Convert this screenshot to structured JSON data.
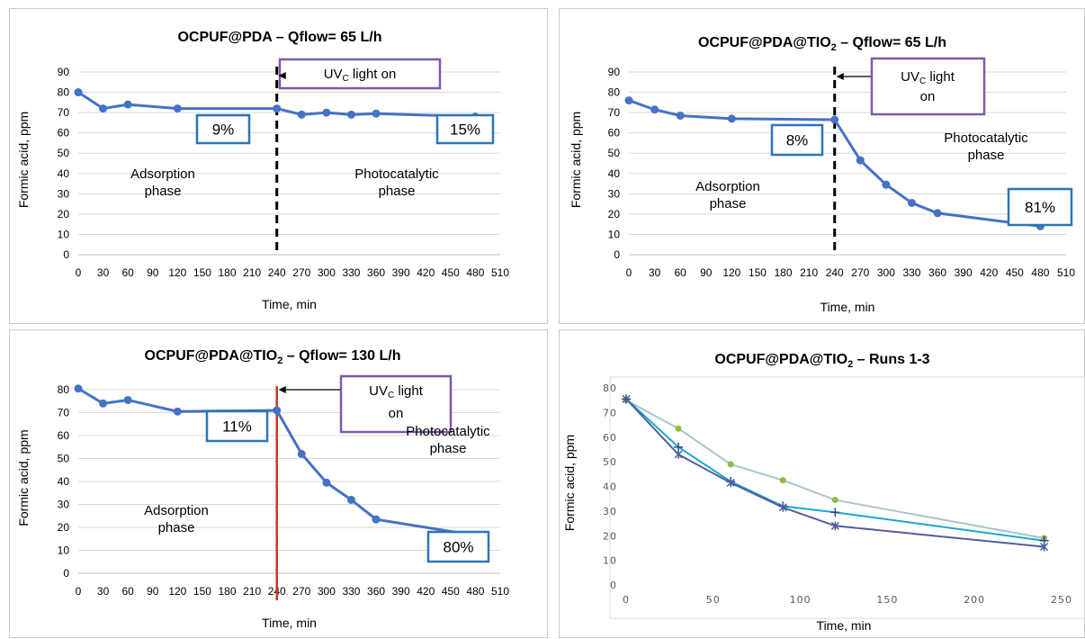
{
  "chart_data": [
    {
      "type": "line",
      "title": "OCPUF@PDA – Qflow= 65 L/h",
      "xlabel": "Time, min",
      "ylabel": "Formic  acid, ppm",
      "xlim": [
        0,
        510
      ],
      "ylim": [
        0,
        90
      ],
      "xticks": [
        "0",
        "30",
        "60",
        "90",
        "120",
        "150",
        "180",
        "210",
        "240",
        "270",
        "300",
        "330",
        "360",
        "390",
        "420",
        "450",
        "480",
        "510"
      ],
      "yticks": [
        "0",
        "10",
        "20",
        "30",
        "40",
        "50",
        "60",
        "70",
        "80",
        "90"
      ],
      "colors": {
        "series": "#4472c4",
        "marker_line": "#000000"
      },
      "grid": true,
      "uv_line": {
        "x": 240,
        "style": "dashed-black"
      },
      "series": [
        {
          "x": [
            0,
            30,
            60,
            120,
            240,
            270,
            300,
            330,
            360,
            480
          ],
          "y": [
            80,
            72,
            74,
            72,
            72,
            69,
            70,
            69,
            69.5,
            68
          ]
        }
      ],
      "annotations": {
        "uv": {
          "main": "UV",
          "sub": "C",
          "rest": " light on"
        },
        "pct_left": "9%",
        "pct_right": "15%",
        "phase_left": [
          "Adsorption",
          "phase"
        ],
        "phase_right": [
          "Photocatalytic",
          "phase"
        ]
      }
    },
    {
      "type": "line",
      "title_parts": [
        "OCPUF@PDA@TIO",
        "2",
        " – Qflow= 65 L/h"
      ],
      "xlabel": "Time, min",
      "ylabel": "Formic  acid, ppm",
      "xlim": [
        0,
        510
      ],
      "ylim": [
        0,
        90
      ],
      "xticks": [
        "0",
        "30",
        "60",
        "90",
        "120",
        "150",
        "180",
        "210",
        "240",
        "270",
        "300",
        "330",
        "360",
        "390",
        "420",
        "450",
        "480",
        "510"
      ],
      "yticks": [
        "0",
        "10",
        "20",
        "30",
        "40",
        "50",
        "60",
        "70",
        "80",
        "90"
      ],
      "colors": {
        "series": "#4472c4"
      },
      "grid": true,
      "uv_line": {
        "x": 240,
        "style": "dashed-black"
      },
      "series": [
        {
          "x": [
            0,
            30,
            60,
            120,
            240,
            270,
            300,
            330,
            360,
            480
          ],
          "y": [
            76,
            71.5,
            68.5,
            67,
            66.5,
            46.5,
            34.5,
            25.5,
            20.5,
            14
          ]
        }
      ],
      "annotations": {
        "uv": {
          "main": "UV",
          "sub": "C",
          "rest": " light",
          "line2": "on"
        },
        "pct_left": "8%",
        "pct_right": "81%",
        "phase_left": [
          "Adsorption",
          "phase"
        ],
        "phase_right": [
          "Photocatalytic",
          "phase"
        ]
      }
    },
    {
      "type": "line",
      "title_parts": [
        "OCPUF@PDA@TIO",
        "2",
        " – Qflow= 130 L/h"
      ],
      "xlabel": "Time, min",
      "ylabel": "Formic  acid, ppm",
      "xlim": [
        0,
        510
      ],
      "ylim": [
        0,
        80
      ],
      "xticks": [
        "0",
        "30",
        "60",
        "90",
        "120",
        "150",
        "180",
        "210",
        "240",
        "270",
        "300",
        "330",
        "360",
        "390",
        "420",
        "450",
        "480",
        "510"
      ],
      "yticks": [
        "0",
        "10",
        "20",
        "30",
        "40",
        "50",
        "60",
        "70",
        "80"
      ],
      "colors": {
        "series": "#4472c4",
        "uv_line": "#c0392b"
      },
      "grid": true,
      "uv_line": {
        "x": 240,
        "style": "solid-red"
      },
      "series": [
        {
          "x": [
            0,
            30,
            60,
            120,
            240,
            270,
            300,
            330,
            360,
            480
          ],
          "y": [
            80.5,
            74,
            75.5,
            70.5,
            71,
            52,
            39.5,
            32,
            23.5,
            16.5
          ]
        }
      ],
      "annotations": {
        "uv": {
          "main": "UV",
          "sub": "C",
          "rest": " light",
          "line2": "on"
        },
        "pct_left": "11%",
        "pct_right": "80%",
        "phase_left": [
          "Adsorption",
          "phase"
        ],
        "phase_right": [
          "Photocatalytic",
          "phase"
        ]
      }
    },
    {
      "type": "line",
      "title_parts": [
        "OCPUF@PDA@TIO",
        "2",
        " – Runs 1-3"
      ],
      "xlabel": "Time, min",
      "ylabel": "Formic  acid, ppm",
      "xlim": [
        0,
        250
      ],
      "ylim": [
        0,
        80
      ],
      "xticks": [
        "0",
        "50",
        "100",
        "150",
        "200",
        "250"
      ],
      "yticks": [
        "0",
        "10",
        "20",
        "30",
        "40",
        "50",
        "60",
        "70",
        "80"
      ],
      "grid": false,
      "series": [
        {
          "marker": "circle",
          "color": "#a9c4cf",
          "marker_color": "#8cbf3f",
          "x": [
            0,
            30,
            60,
            90,
            120,
            240
          ],
          "y": [
            75,
            63.5,
            49,
            42.5,
            34.5,
            19
          ]
        },
        {
          "marker": "plus",
          "color": "#1ba6cf",
          "marker_color": "#2b4a8c",
          "x": [
            0,
            30,
            60,
            90,
            120,
            240
          ],
          "y": [
            75.5,
            56,
            42,
            32,
            29.5,
            18
          ]
        },
        {
          "marker": "star",
          "color": "#4f5f9e",
          "marker_color": "#4f5f9e",
          "x": [
            0,
            30,
            60,
            90,
            120,
            240
          ],
          "y": [
            75.5,
            53,
            41.5,
            31.5,
            24,
            15.5
          ]
        }
      ]
    }
  ]
}
